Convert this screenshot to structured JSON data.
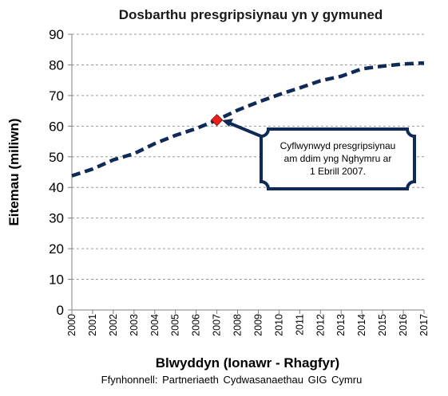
{
  "chart_data": {
    "type": "line",
    "title": "Dosbarthu presgripsiynau yn y gymuned",
    "xlabel": "Blwyddyn (Ionawr - Rhagfyr)",
    "ylabel": "Eitemau (miliwn)",
    "source": "Ffynhonnell: Partneriaeth Cydwasanaethau GIG Cymru",
    "ylim": [
      0,
      90
    ],
    "yticks": [
      "0",
      "10",
      "20",
      "30",
      "40",
      "50",
      "60",
      "70",
      "80",
      "90"
    ],
    "grid": "horizontal-dashed",
    "categories": [
      "2000",
      "2001",
      "2002",
      "2003",
      "2004",
      "2005",
      "2006",
      "2007",
      "2008",
      "2009",
      "2010",
      "2011",
      "2012",
      "2013",
      "2014",
      "2015",
      "2016",
      "2017"
    ],
    "series": [
      {
        "values": [
          43.8,
          46.0,
          49.0,
          51.0,
          54.3,
          57.0,
          59.2,
          62.0,
          65.2,
          67.9,
          70.3,
          72.5,
          74.8,
          76.3,
          78.7,
          79.6,
          80.3,
          80.6
        ],
        "color": "#0f2a57",
        "style": "dashed"
      }
    ],
    "marker": {
      "x": "2007",
      "y": 62.0,
      "color": "#e8201c",
      "shape": "diamond"
    },
    "annotation": {
      "lines": [
        "Cyflwynwyd presgripsiynau",
        "am ddim yng Nghymru ar",
        "1 Ebrill 2007."
      ],
      "border_color": "#0f2a57"
    }
  }
}
